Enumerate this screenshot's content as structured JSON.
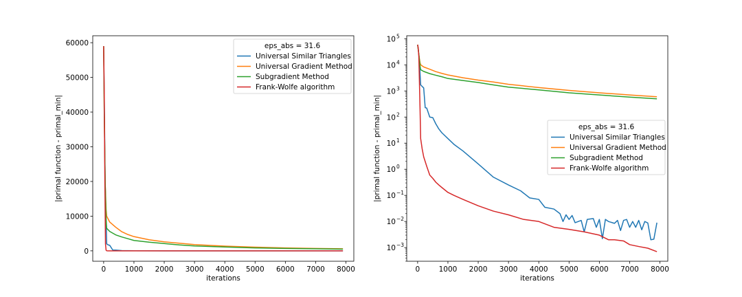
{
  "colors": {
    "series": [
      "#1f77b4",
      "#ff7f0e",
      "#2ca02c",
      "#d62728"
    ]
  },
  "chart_data": [
    {
      "type": "line",
      "yscale": "linear",
      "xlabel": "iterations",
      "ylabel": "|primal function - primal_min|",
      "xlim": [
        -360,
        8260
      ],
      "ylim": [
        -3000,
        62000
      ],
      "xticks": [
        0,
        1000,
        2000,
        3000,
        4000,
        5000,
        6000,
        7000,
        8000
      ],
      "xtick_labels": [
        "0",
        "1000",
        "2000",
        "3000",
        "4000",
        "5000",
        "6000",
        "7000",
        "8000"
      ],
      "yticks": [
        0,
        10000,
        20000,
        30000,
        40000,
        50000,
        60000
      ],
      "ytick_labels": [
        "0",
        "10000",
        "20000",
        "30000",
        "40000",
        "50000",
        "60000"
      ],
      "legend": {
        "title": "eps_abs = 31.6",
        "placement": "upper right"
      },
      "series": [
        {
          "name": "Universal Similar Triangles",
          "x": [
            0,
            25,
            50,
            100,
            150,
            200,
            300,
            400,
            600,
            1000,
            2000,
            4000,
            7900
          ],
          "y": [
            59000,
            40000,
            20000,
            2000,
            1700,
            1600,
            250,
            230,
            80,
            30,
            5,
            0.5,
            0.009
          ]
        },
        {
          "name": "Universal Gradient Method",
          "x": [
            0,
            20,
            50,
            80,
            100,
            200,
            400,
            600,
            800,
            1000,
            1500,
            2000,
            2500,
            3000,
            4000,
            5000,
            6000,
            7000,
            7900
          ],
          "y": [
            59000,
            40000,
            20000,
            12000,
            10000,
            8300,
            6800,
            5500,
            4700,
            4100,
            3200,
            2600,
            2200,
            1800,
            1350,
            1050,
            850,
            700,
            600
          ]
        },
        {
          "name": "Subgradient Method",
          "x": [
            0,
            20,
            50,
            80,
            100,
            200,
            400,
            600,
            800,
            1000,
            1500,
            2000,
            2500,
            3000,
            4000,
            5000,
            6000,
            7000,
            7900
          ],
          "y": [
            59000,
            40000,
            20000,
            9000,
            6500,
            5600,
            4600,
            4000,
            3500,
            3000,
            2500,
            2100,
            1700,
            1400,
            1100,
            850,
            700,
            580,
            500
          ]
        },
        {
          "name": "Frank-Wolfe algorithm",
          "x": [
            0,
            20,
            40,
            60,
            80,
            100,
            150,
            200,
            300,
            400,
            600,
            800,
            1000,
            2000,
            3000,
            4000,
            6000,
            7900
          ],
          "y": [
            59000,
            45000,
            20000,
            2000,
            200,
            15,
            4,
            1.5,
            0.6,
            0.3,
            0.15,
            0.08,
            0.05,
            0.02,
            0.01,
            0.005,
            0.002,
            0.0007
          ]
        }
      ]
    },
    {
      "type": "line",
      "yscale": "log",
      "xlabel": "iterations",
      "ylabel": "|primal function - primal_min|",
      "xlim": [
        -360,
        8260
      ],
      "ylim": [
        0.0003,
        130000
      ],
      "xticks": [
        0,
        1000,
        2000,
        3000,
        4000,
        5000,
        6000,
        7000,
        8000
      ],
      "xtick_labels": [
        "0",
        "1000",
        "2000",
        "3000",
        "4000",
        "5000",
        "6000",
        "7000",
        "8000"
      ],
      "yticks": [
        0.001,
        0.01,
        0.1,
        1,
        10,
        100,
        1000,
        10000,
        100000
      ],
      "ytick_base": [
        "10",
        "10",
        "10",
        "10",
        "10",
        "10",
        "10",
        "10",
        "10"
      ],
      "ytick_exp": [
        "−3",
        "−2",
        "−1",
        "0",
        "1",
        "2",
        "3",
        "4",
        "5"
      ],
      "legend": {
        "title": "eps_abs = 31.6",
        "placement": "center right"
      },
      "series": [
        {
          "name": "Universal Similar Triangles",
          "x": [
            0,
            50,
            100,
            200,
            250,
            300,
            400,
            500,
            600,
            700,
            800,
            1000,
            1200,
            1500,
            2000,
            2500,
            3000,
            3400,
            3700,
            4000,
            4200,
            4500,
            4700,
            4800,
            4900,
            5000,
            5100,
            5200,
            5400,
            5500,
            5600,
            5800,
            5900,
            6000,
            6100,
            6200,
            6300,
            6500,
            6600,
            6700,
            6800,
            6900,
            7000,
            7100,
            7200,
            7300,
            7400,
            7500,
            7600,
            7700,
            7800,
            7900
          ],
          "y": [
            59000,
            20000,
            1700,
            1300,
            230,
            220,
            100,
            95,
            55,
            35,
            25,
            15,
            9,
            5,
            1.6,
            0.5,
            0.25,
            0.15,
            0.08,
            0.07,
            0.035,
            0.03,
            0.02,
            0.01,
            0.018,
            0.012,
            0.017,
            0.009,
            0.011,
            0.004,
            0.012,
            0.013,
            0.006,
            0.012,
            0.0022,
            0.012,
            0.01,
            0.0085,
            0.011,
            0.0045,
            0.011,
            0.012,
            0.006,
            0.01,
            0.006,
            0.011,
            0.0048,
            0.01,
            0.0088,
            0.002,
            0.0021,
            0.009
          ]
        },
        {
          "name": "Universal Gradient Method",
          "x": [
            0,
            20,
            50,
            80,
            100,
            200,
            400,
            600,
            800,
            1000,
            1500,
            2000,
            2500,
            3000,
            4000,
            5000,
            6000,
            7000,
            7900
          ],
          "y": [
            59000,
            40000,
            20000,
            12000,
            10000,
            8300,
            6800,
            5500,
            4700,
            4100,
            3200,
            2600,
            2200,
            1800,
            1350,
            1050,
            850,
            700,
            600
          ]
        },
        {
          "name": "Subgradient Method",
          "x": [
            0,
            20,
            50,
            80,
            100,
            200,
            400,
            600,
            800,
            1000,
            1500,
            2000,
            2500,
            3000,
            4000,
            5000,
            6000,
            7000,
            7900
          ],
          "y": [
            59000,
            40000,
            20000,
            9000,
            6500,
            5600,
            4600,
            4000,
            3500,
            3000,
            2500,
            2100,
            1700,
            1400,
            1100,
            850,
            700,
            580,
            500
          ]
        },
        {
          "name": "Frank-Wolfe algorithm",
          "x": [
            0,
            20,
            40,
            60,
            80,
            100,
            150,
            200,
            300,
            400,
            500,
            600,
            700,
            800,
            1000,
            1200,
            1500,
            2000,
            2500,
            3000,
            3500,
            4000,
            4500,
            5000,
            5500,
            6000,
            6300,
            6500,
            6800,
            7000,
            7300,
            7600,
            7900
          ],
          "y": [
            59000,
            45000,
            20000,
            2000,
            200,
            15,
            6,
            3,
            1.3,
            0.6,
            0.45,
            0.32,
            0.25,
            0.2,
            0.13,
            0.1,
            0.07,
            0.04,
            0.025,
            0.018,
            0.012,
            0.01,
            0.006,
            0.005,
            0.004,
            0.003,
            0.002,
            0.002,
            0.0018,
            0.0013,
            0.0011,
            0.00095,
            0.0007
          ]
        }
      ]
    }
  ]
}
